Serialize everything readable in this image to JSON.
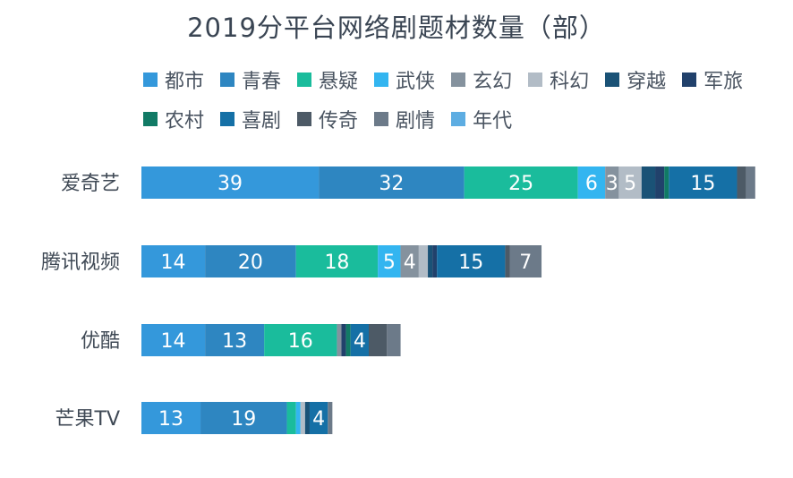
{
  "chart_data": {
    "type": "bar",
    "orientation": "horizontal",
    "stacked": true,
    "title": "2019分平台网络剧题材数量（部）",
    "categories": [
      "爱奇艺",
      "腾讯视频",
      "优酷",
      "芒果TV"
    ],
    "legend_position": "top",
    "grid": false,
    "series": [
      {
        "name": "都市",
        "color": "#3498db",
        "values": [
          39,
          14,
          14,
          13
        ],
        "labels": [
          "39",
          "14",
          "14",
          "13"
        ]
      },
      {
        "name": "青春",
        "color": "#2e86c1",
        "values": [
          32,
          20,
          13,
          19
        ],
        "labels": [
          "32",
          "20",
          "13",
          "19"
        ]
      },
      {
        "name": "悬疑",
        "color": "#1abc9c",
        "values": [
          25,
          18,
          16,
          2
        ],
        "labels": [
          "25",
          "18",
          "16",
          ""
        ]
      },
      {
        "name": "武侠",
        "color": "#33b5f0",
        "values": [
          6,
          5,
          0,
          1
        ],
        "labels": [
          "6",
          "5",
          "",
          ""
        ]
      },
      {
        "name": "玄幻",
        "color": "#85929e",
        "values": [
          3,
          4,
          1,
          0
        ],
        "labels": [
          "3",
          "4",
          "",
          ""
        ]
      },
      {
        "name": "科幻",
        "color": "#b2bcc6",
        "values": [
          5,
          2,
          0,
          1
        ],
        "labels": [
          "5",
          "",
          "",
          ""
        ]
      },
      {
        "name": "穿越",
        "color": "#1a5276",
        "values": [
          3,
          1,
          0,
          1
        ],
        "labels": [
          "",
          "",
          "",
          ""
        ]
      },
      {
        "name": "军旅",
        "color": "#21416b",
        "values": [
          2,
          1,
          1,
          0
        ],
        "labels": [
          "",
          "",
          "",
          ""
        ]
      },
      {
        "name": "农村",
        "color": "#117a65",
        "values": [
          1,
          0,
          1,
          0
        ],
        "labels": [
          "",
          "",
          "",
          ""
        ]
      },
      {
        "name": "喜剧",
        "color": "#1570a6",
        "values": [
          15,
          15,
          4,
          4
        ],
        "labels": [
          "15",
          "15",
          "4",
          "4"
        ]
      },
      {
        "name": "传奇",
        "color": "#4d5a66",
        "values": [
          2,
          1,
          4,
          0
        ],
        "labels": [
          "",
          "",
          "",
          ""
        ]
      },
      {
        "name": "剧情",
        "color": "#6c7a89",
        "values": [
          2,
          7,
          3,
          1
        ],
        "labels": [
          "",
          "7",
          "",
          ""
        ]
      },
      {
        "name": "年代",
        "color": "#5dade2",
        "values": [
          0,
          0,
          0,
          0
        ],
        "labels": [
          "",
          "",
          "",
          ""
        ]
      }
    ]
  }
}
